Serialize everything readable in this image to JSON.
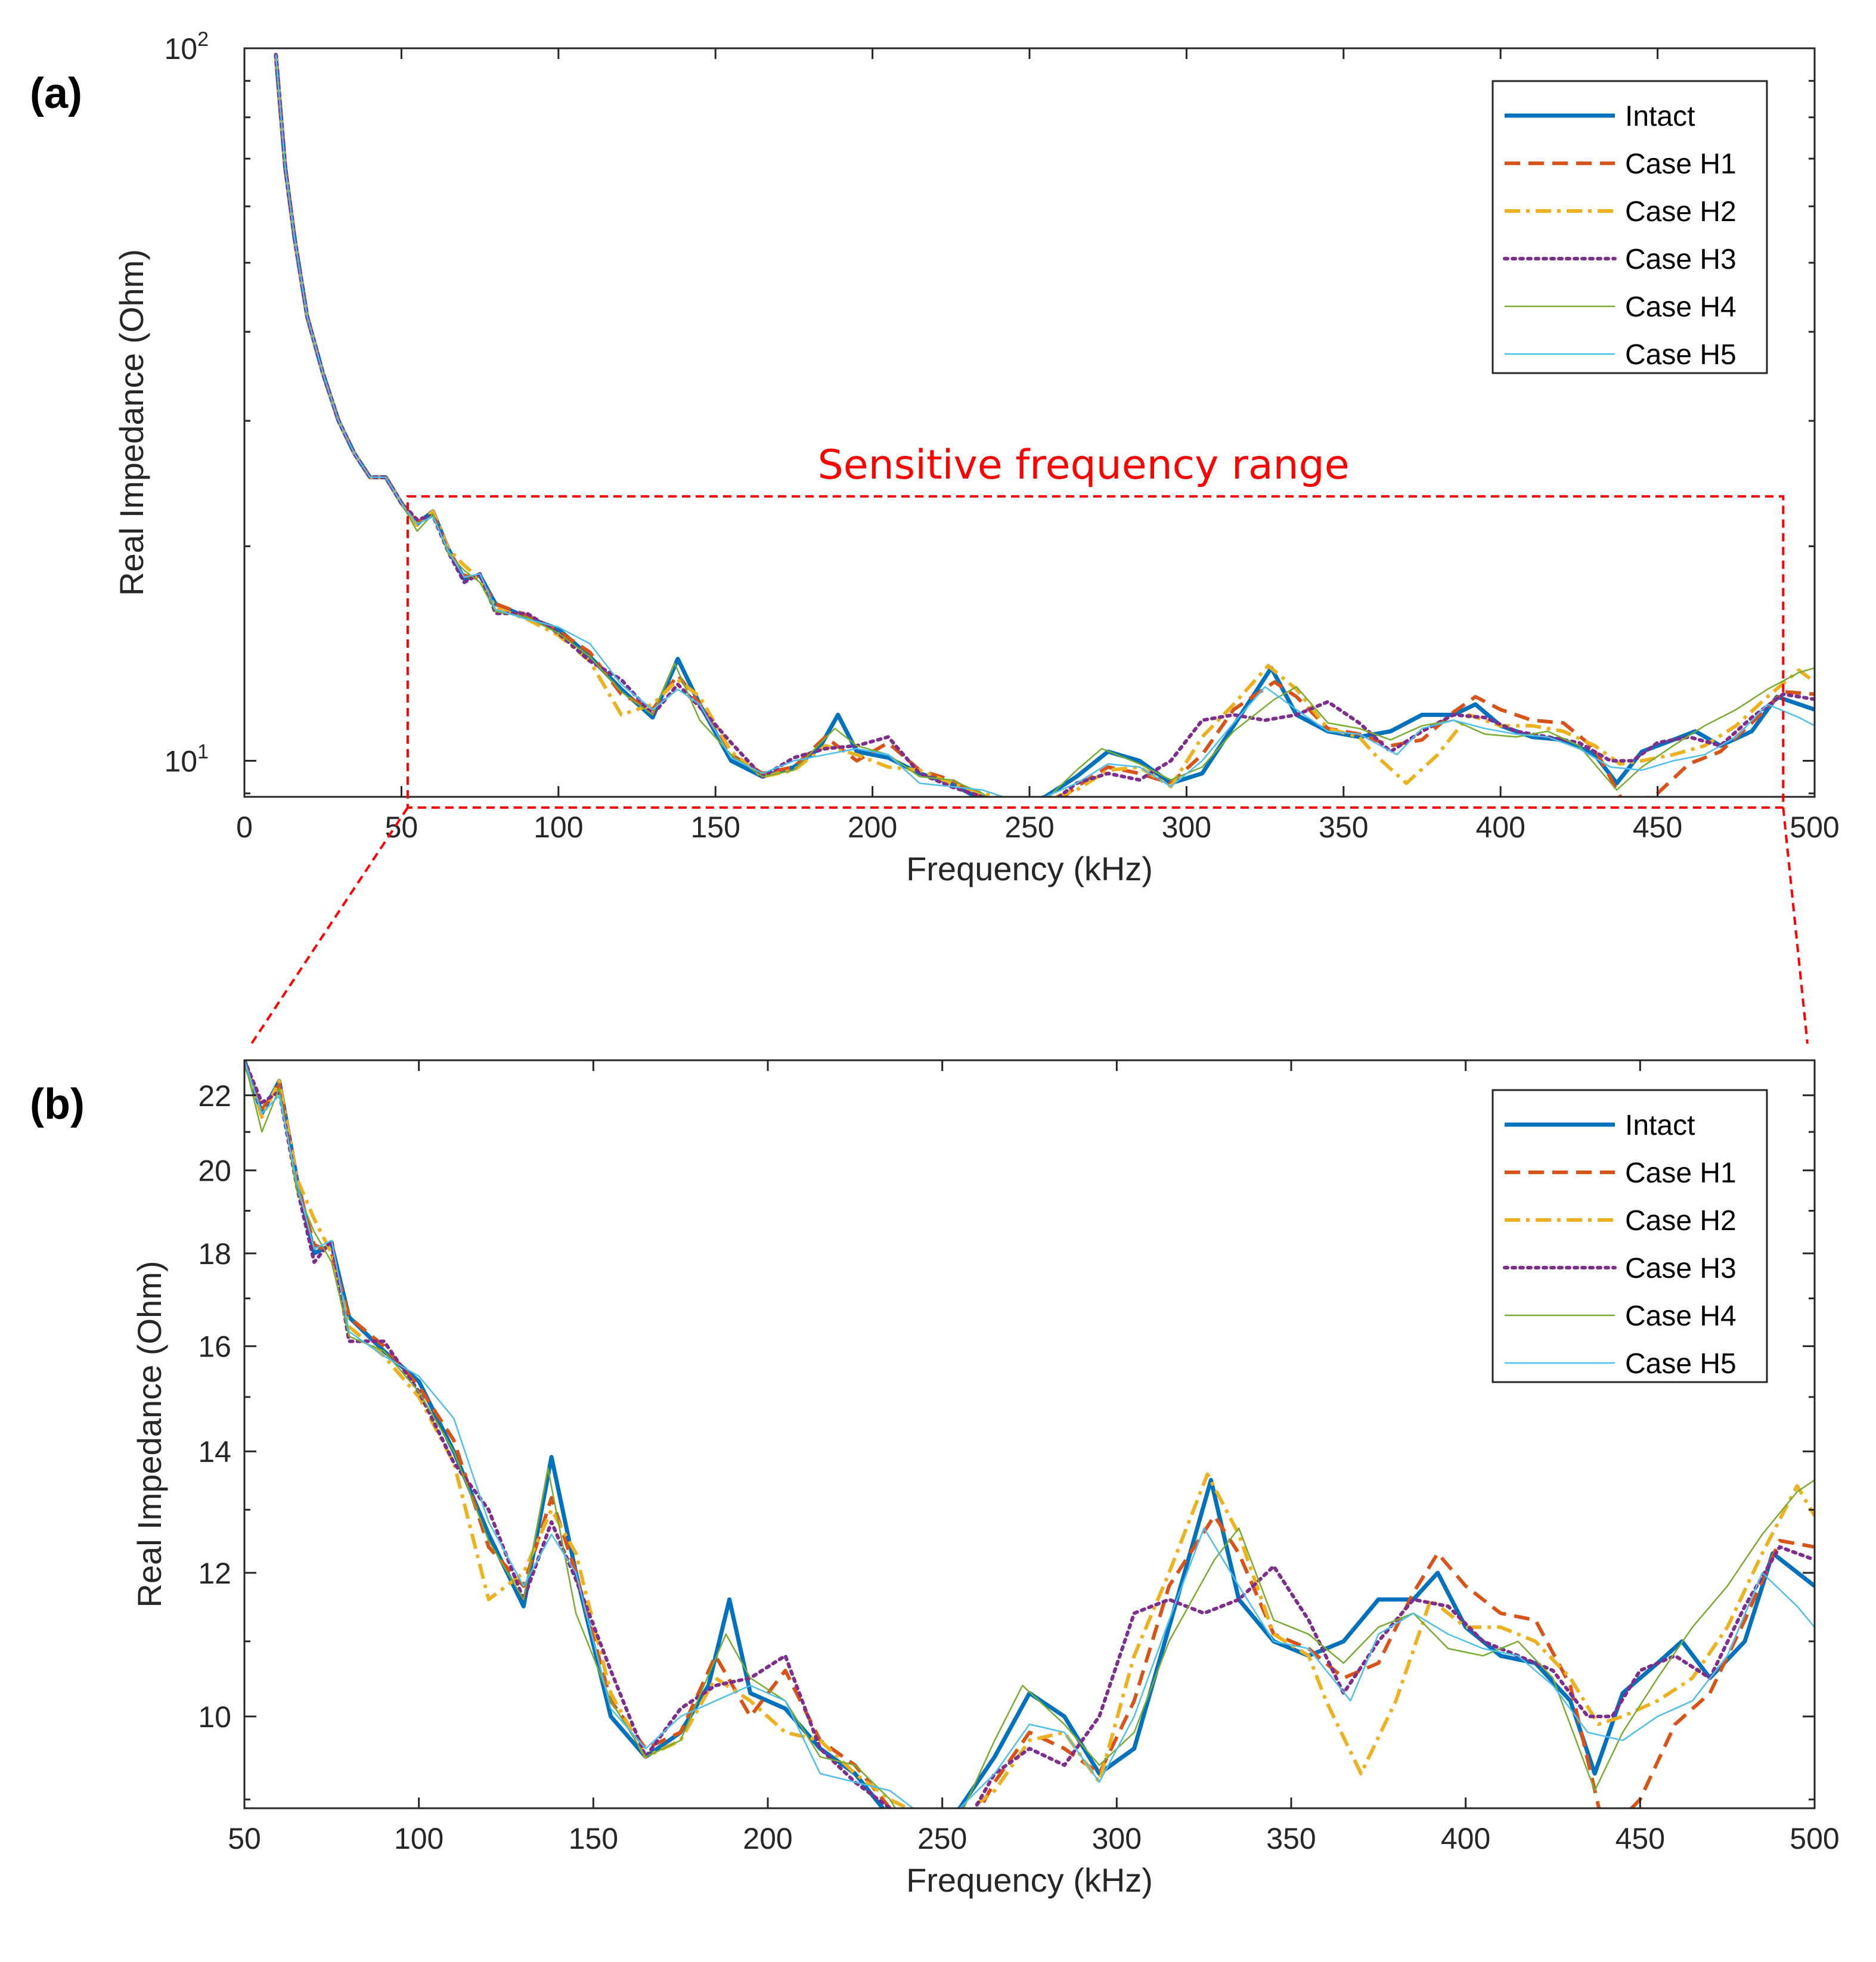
{
  "chart_data": [
    {
      "type": "line",
      "panel_label": "(a)",
      "xlabel": "Frequency (kHz)",
      "ylabel": "Real Impedance (Ohm)",
      "xlim": [
        0,
        500
      ],
      "ylim": [
        8.9,
        100
      ],
      "yscale": "log",
      "x_ticks": [
        0,
        50,
        100,
        150,
        200,
        250,
        300,
        350,
        400,
        450,
        500
      ],
      "y_ticks": [
        10,
        100
      ],
      "y_tick_labels": [
        {
          "base": "10",
          "exp": "1"
        },
        {
          "base": "10",
          "exp": "2"
        }
      ],
      "legend_position": "top-right",
      "annotation": {
        "text": "Sensitive frequency range",
        "x_range": [
          52,
          490
        ],
        "y_range": [
          8.9,
          23.5
        ],
        "color": "#ff0000"
      },
      "series": [
        {
          "name": "Intact",
          "color": "#0072BD",
          "style": "solid-thick",
          "x": [
            10,
            13,
            16,
            20,
            25,
            30,
            35,
            40,
            45,
            50,
            55,
            60,
            65,
            70,
            75,
            80,
            90,
            100,
            110,
            120,
            130,
            138,
            145,
            155,
            165,
            175,
            183,
            189,
            195,
            205,
            215,
            225,
            235,
            245,
            255,
            265,
            275,
            285,
            295,
            305,
            315,
            327,
            335,
            345,
            355,
            365,
            375,
            385,
            392,
            400,
            410,
            420,
            430,
            437,
            445,
            455,
            462,
            470,
            480,
            488,
            500
          ],
          "y": [
            98,
            68,
            54,
            42,
            35,
            30,
            27,
            25,
            25,
            23,
            21.5,
            22.4,
            19.8,
            18.0,
            18.2,
            16.6,
            15.9,
            15.3,
            14.0,
            12.6,
            11.5,
            13.9,
            12.0,
            10.0,
            9.5,
            9.8,
            10.4,
            11.6,
            10.3,
            10.1,
            9.6,
            9.3,
            8.8,
            8.6,
            8.9,
            9.5,
            10.3,
            10.0,
            9.3,
            9.6,
            11.2,
            13.5,
            11.6,
            11.0,
            10.8,
            11.0,
            11.6,
            11.6,
            12.0,
            11.2,
            10.8,
            10.7,
            10.2,
            9.3,
            10.3,
            10.7,
            11.0,
            10.5,
            11.0,
            12.3,
            11.8
          ]
        },
        {
          "name": "Case H1",
          "color": "#D95319",
          "style": "dashed",
          "x": [
            10,
            13,
            16,
            20,
            25,
            30,
            35,
            40,
            45,
            50,
            55,
            60,
            65,
            70,
            75,
            80,
            90,
            100,
            110,
            120,
            130,
            138,
            145,
            155,
            165,
            175,
            185,
            195,
            205,
            215,
            225,
            235,
            245,
            255,
            265,
            275,
            285,
            295,
            305,
            315,
            328,
            335,
            345,
            355,
            365,
            375,
            385,
            392,
            400,
            410,
            420,
            430,
            440,
            450,
            460,
            470,
            480,
            490,
            500
          ],
          "y": [
            98,
            68,
            54,
            42,
            35,
            30,
            27,
            25,
            25,
            23,
            21.6,
            22.3,
            19.7,
            18.2,
            18.0,
            16.6,
            16.0,
            15.2,
            14.2,
            12.4,
            11.8,
            13.2,
            12.0,
            10.2,
            9.6,
            9.8,
            10.8,
            10.0,
            10.6,
            9.7,
            9.4,
            8.9,
            8.6,
            8.5,
            9.2,
            9.8,
            9.6,
            9.3,
            10.2,
            11.8,
            12.9,
            12.3,
            11.1,
            10.9,
            10.5,
            10.7,
            11.7,
            12.3,
            11.8,
            11.4,
            11.3,
            10.4,
            8.6,
            9.0,
            9.9,
            10.3,
            11.3,
            12.5,
            12.4
          ]
        },
        {
          "name": "Case H2",
          "color": "#EDB120",
          "style": "dashdot",
          "x": [
            10,
            13,
            16,
            20,
            25,
            30,
            35,
            40,
            45,
            50,
            55,
            60,
            65,
            70,
            75,
            80,
            90,
            100,
            110,
            120,
            130,
            138,
            145,
            155,
            165,
            175,
            185,
            195,
            205,
            215,
            225,
            235,
            245,
            255,
            265,
            275,
            285,
            295,
            305,
            315,
            326,
            335,
            345,
            355,
            360,
            370,
            380,
            390,
            400,
            410,
            420,
            430,
            438,
            445,
            455,
            465,
            475,
            485,
            495,
            500
          ],
          "y": [
            98,
            68,
            54,
            42,
            35,
            30,
            27,
            25,
            25,
            23,
            21.4,
            22.4,
            19.8,
            18.8,
            18.0,
            16.4,
            15.8,
            15.0,
            13.8,
            11.6,
            12.0,
            13.0,
            12.3,
            10.3,
            9.5,
            9.7,
            10.5,
            10.2,
            9.8,
            9.7,
            9.3,
            9.0,
            8.8,
            8.8,
            9.1,
            9.7,
            9.8,
            9.2,
            10.8,
            12.0,
            13.6,
            12.6,
            11.1,
            10.8,
            10.2,
            9.3,
            10.2,
            11.6,
            11.2,
            11.2,
            11.0,
            10.5,
            9.9,
            10.0,
            10.2,
            10.5,
            11.2,
            12.3,
            13.4,
            12.9
          ]
        },
        {
          "name": "Case H3",
          "color": "#7E2F8E",
          "style": "dotted",
          "x": [
            10,
            13,
            16,
            20,
            25,
            30,
            35,
            40,
            45,
            50,
            55,
            60,
            65,
            70,
            75,
            80,
            90,
            100,
            110,
            120,
            130,
            138,
            145,
            155,
            165,
            175,
            185,
            195,
            205,
            215,
            225,
            235,
            248,
            255,
            265,
            275,
            285,
            295,
            305,
            315,
            325,
            335,
            345,
            355,
            365,
            375,
            385,
            395,
            405,
            415,
            425,
            435,
            442,
            450,
            460,
            470,
            480,
            490,
            500
          ],
          "y": [
            98,
            68,
            54,
            42,
            35,
            30,
            27,
            25,
            25,
            23,
            21.8,
            22.1,
            19.6,
            17.8,
            18.3,
            16.1,
            16.1,
            15.1,
            13.8,
            13.0,
            11.6,
            12.8,
            11.9,
            10.6,
            9.5,
            10.1,
            10.4,
            10.5,
            10.8,
            9.6,
            9.2,
            8.9,
            8.2,
            8.6,
            9.3,
            9.6,
            9.4,
            10.0,
            11.4,
            11.6,
            11.4,
            11.6,
            12.1,
            11.3,
            10.3,
            11.0,
            11.6,
            11.5,
            11.0,
            10.8,
            10.6,
            10.0,
            10.0,
            10.6,
            10.8,
            10.5,
            11.5,
            12.4,
            12.2
          ]
        },
        {
          "name": "Case H4",
          "color": "#77AC30",
          "style": "solid-thin",
          "x": [
            10,
            13,
            16,
            20,
            25,
            30,
            35,
            40,
            45,
            50,
            55,
            60,
            65,
            70,
            75,
            80,
            90,
            100,
            110,
            120,
            130,
            137,
            145,
            155,
            165,
            175,
            188,
            195,
            205,
            215,
            225,
            235,
            246,
            255,
            265,
            273,
            285,
            295,
            305,
            315,
            328,
            335,
            345,
            355,
            365,
            375,
            385,
            395,
            405,
            415,
            425,
            437,
            445,
            455,
            465,
            475,
            485,
            495,
            500
          ],
          "y": [
            98,
            68,
            54,
            42,
            35,
            30,
            27,
            25,
            25,
            23,
            21.0,
            22.2,
            19.5,
            18.5,
            17.8,
            16.2,
            15.9,
            15.1,
            14.0,
            12.5,
            11.6,
            13.7,
            11.4,
            10.2,
            9.5,
            9.7,
            11.1,
            10.5,
            10.2,
            9.5,
            9.4,
            9.0,
            8.3,
            8.8,
            9.7,
            10.4,
            9.9,
            9.4,
            9.8,
            11.0,
            12.2,
            12.7,
            11.3,
            11.1,
            10.7,
            11.2,
            11.4,
            10.9,
            10.8,
            11.0,
            10.5,
            9.1,
            9.8,
            10.5,
            11.2,
            11.8,
            12.6,
            13.3,
            13.5
          ]
        },
        {
          "name": "Case H5",
          "color": "#4DBEEE",
          "style": "solid-thin",
          "x": [
            10,
            13,
            16,
            20,
            25,
            30,
            35,
            40,
            45,
            50,
            55,
            60,
            65,
            70,
            75,
            80,
            90,
            100,
            110,
            120,
            130,
            138,
            145,
            155,
            165,
            175,
            185,
            195,
            205,
            215,
            225,
            235,
            245,
            255,
            265,
            275,
            285,
            295,
            305,
            315,
            325,
            335,
            345,
            355,
            367,
            375,
            385,
            395,
            405,
            415,
            425,
            435,
            445,
            455,
            465,
            475,
            485,
            495,
            500
          ],
          "y": [
            98,
            68,
            54,
            42,
            35,
            30,
            27,
            25,
            25,
            23,
            21.5,
            22.0,
            19.7,
            18.1,
            18.3,
            16.3,
            15.8,
            15.4,
            14.6,
            12.8,
            11.8,
            12.6,
            12.0,
            10.1,
            9.6,
            10.0,
            10.2,
            10.4,
            10.2,
            9.3,
            9.2,
            9.1,
            8.8,
            8.9,
            9.3,
            9.9,
            9.8,
            9.2,
            10.0,
            11.3,
            12.7,
            11.8,
            11.0,
            10.9,
            10.2,
            11.1,
            11.4,
            11.1,
            10.9,
            10.8,
            10.4,
            9.8,
            9.7,
            10.0,
            10.2,
            10.8,
            12.0,
            11.5,
            11.2
          ]
        }
      ]
    },
    {
      "type": "line",
      "panel_label": "(b)",
      "xlabel": "Frequency (kHz)",
      "ylabel": "Real Impedance (Ohm)",
      "xlim": [
        50,
        500
      ],
      "ylim": [
        8.9,
        23
      ],
      "yscale": "log",
      "x_ticks": [
        50,
        100,
        150,
        200,
        250,
        300,
        350,
        400,
        450,
        500
      ],
      "y_ticks": [
        10,
        12,
        14,
        16,
        18,
        20,
        22
      ],
      "legend_position": "top-right",
      "series_from_panel": "(a)"
    }
  ]
}
